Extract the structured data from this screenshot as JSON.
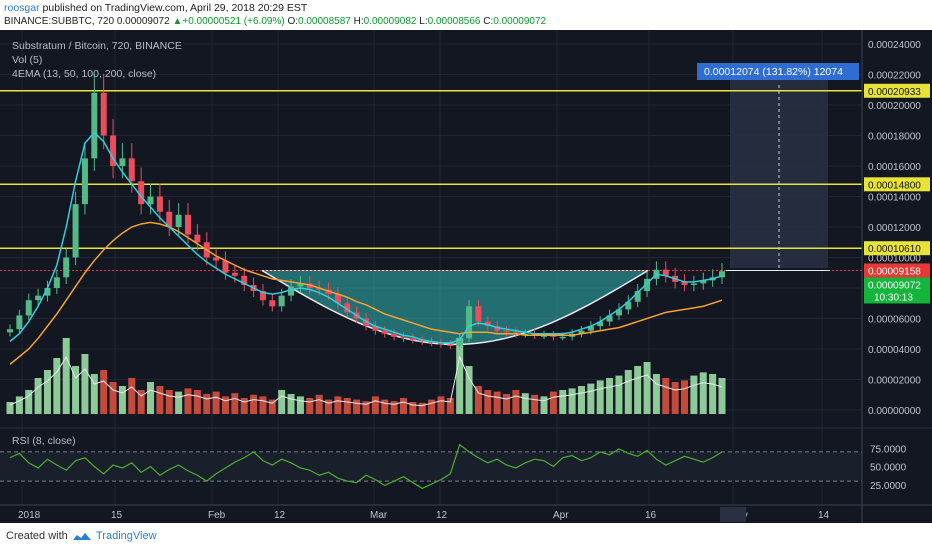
{
  "header": {
    "user": "roosgar",
    "published": "published on TradingView.com, April 29, 2018 20:29 EST",
    "symbol": "BINANCE:SUBBTC, 720",
    "last": "0.00009072",
    "change": "+0.00000521 (+6.09%)",
    "o_label": "O:",
    "o": "0.00008587",
    "h_label": "H:",
    "h": "0.00009082",
    "l_label": "L:",
    "l": "0.00008566",
    "c_label": "C:",
    "c": "0.00009072"
  },
  "legend": {
    "title": "Substratum / Bitcoin, 720, BINANCE",
    "vol": "Vol (5)",
    "ema": "4EMA (13, 50, 100, 200, close)",
    "rsi": "RSI (8, close)"
  },
  "measure_label": "0.00012074 (131.82%) 12074",
  "footer": {
    "created": "Created with",
    "brand": "TradingView"
  },
  "colors": {
    "bg": "#131722",
    "up": "#53b987",
    "down": "#eb4d5c",
    "level": "#e8e338",
    "cup_fill": "#2fb6b0",
    "ema13": "#2fd0e0",
    "ema50": "#f4a234",
    "vol_up": "#8ec998",
    "vol_down": "#c44b3c",
    "rsi": "#4caf2f",
    "price_tag": "#e53935",
    "last_tag": "#14b53a",
    "measure": "#2f6dd1"
  },
  "chart_data": {
    "type": "candlestick",
    "title": "Substratum / Bitcoin, 720, BINANCE",
    "y_ticks": [
      "0.00024000",
      "0.00022000",
      "0.00020000",
      "0.00018000",
      "0.00016000",
      "0.00014000",
      "0.00012000",
      "0.00010000",
      "0.00008000",
      "0.00006000",
      "0.00004000",
      "0.00002000",
      "0.00000000"
    ],
    "x_ticks": [
      "2018",
      "15",
      "Feb",
      "12",
      "Mar",
      "12",
      "Apr",
      "16",
      "May",
      "14"
    ],
    "horizontal_levels": [
      {
        "label": "0.00020933",
        "value": 0.00020933
      },
      {
        "label": "0.00014800",
        "value": 0.000148
      },
      {
        "label": "0.00010610",
        "value": 0.0001061
      }
    ],
    "price_tags": {
      "resistance": "0.00009158",
      "last": "0.00009072",
      "countdown": "10:30:13"
    },
    "close_series": [
      5.3e-05,
      6.2e-05,
      7.2e-05,
      7.5e-05,
      8e-05,
      8.7e-05,
      0.0001,
      0.000135,
      0.000165,
      0.000208,
      0.00018,
      0.00016,
      0.000165,
      0.00015,
      0.000135,
      0.00014,
      0.00013,
      0.00012,
      0.000128,
      0.000115,
      0.00011,
      0.0001,
      9.8e-05,
      9e-05,
      8.8e-05,
      8.2e-05,
      7.8e-05,
      7.2e-05,
      6.8e-05,
      7.5e-05,
      8.1e-05,
      8.3e-05,
      8e-05,
      7.9e-05,
      7.6e-05,
      7e-05,
      6.4e-05,
      6e-05,
      5.5e-05,
      5.2e-05,
      5e-05,
      4.8e-05,
      4.7e-05,
      4.6e-05,
      4.5e-05,
      4.4e-05,
      4.3e-05,
      4.2e-05,
      4.7e-05,
      6.8e-05,
      5.8e-05,
      5.5e-05,
      5.2e-05,
      5.1e-05,
      5e-05,
      5e-05,
      4.9e-05,
      4.9e-05,
      4.8e-05,
      4.8e-05,
      5e-05,
      5.2e-05,
      5.5e-05,
      5.8e-05,
      6.2e-05,
      6.6e-05,
      7.1e-05,
      7.8e-05,
      8.6e-05,
      9.2e-05,
      8.8e-05,
      8.4e-05,
      8.2e-05,
      8.3e-05,
      8.5e-05,
      8.7e-05,
      9.1e-05
    ],
    "ema13": [
      4.5e-05,
      5e-05,
      5.8e-05,
      6.8e-05,
      8e-05,
      9.5e-05,
      0.00012,
      0.00015,
      0.000175,
      0.000182,
      0.000176,
      0.000165,
      0.000156,
      0.000148,
      0.00014,
      0.000133,
      0.000126,
      0.00012,
      0.000114,
      0.000108,
      0.000102,
      9.7e-05,
      9.3e-05,
      8.9e-05,
      8.6e-05,
      8.3e-05,
      8e-05,
      7.7e-05,
      7.6e-05,
      7.7e-05,
      7.9e-05,
      8e-05,
      7.9e-05,
      7.7e-05,
      7.4e-05,
      7e-05,
      6.6e-05,
      6.2e-05,
      5.8e-05,
      5.5e-05,
      5.3e-05,
      5.1e-05,
      4.9e-05,
      4.8e-05,
      4.6e-05,
      4.5e-05,
      4.4e-05,
      4.4e-05,
      4.6e-05,
      5.5e-05,
      5.7e-05,
      5.6e-05,
      5.4e-05,
      5.3e-05,
      5.2e-05,
      5.1e-05,
      5e-05,
      5e-05,
      5e-05,
      5e-05,
      5.1e-05,
      5.3e-05,
      5.5e-05,
      5.8e-05,
      6.2e-05,
      6.6e-05,
      7.1e-05,
      7.7e-05,
      8.3e-05,
      8.9e-05,
      8.8e-05,
      8.6e-05,
      8.4e-05,
      8.4e-05,
      8.5e-05,
      8.6e-05,
      8.8e-05
    ],
    "ema50": [
      3e-05,
      3.5e-05,
      4e-05,
      4.7e-05,
      5.5e-05,
      6.3e-05,
      7.2e-05,
      8.1e-05,
      9e-05,
      9.8e-05,
      0.000105,
      0.000111,
      0.000116,
      0.00012,
      0.000122,
      0.000123,
      0.000122,
      0.00012,
      0.000117,
      0.000113,
      0.000109,
      0.000105,
      0.000101,
      9.8e-05,
      9.5e-05,
      9.2e-05,
      9e-05,
      8.8e-05,
      8.6e-05,
      8.5e-05,
      8.4e-05,
      8.3e-05,
      8.2e-05,
      8e-05,
      7.8e-05,
      7.6e-05,
      7.4e-05,
      7.1e-05,
      6.9e-05,
      6.6e-05,
      6.3e-05,
      6.1e-05,
      5.9e-05,
      5.7e-05,
      5.5e-05,
      5.3e-05,
      5.2e-05,
      5.1e-05,
      5e-05,
      5.1e-05,
      5.1e-05,
      5.1e-05,
      5e-05,
      5e-05,
      5e-05,
      4.9e-05,
      4.9e-05,
      4.9e-05,
      4.9e-05,
      4.9e-05,
      4.9e-05,
      5e-05,
      5.1e-05,
      5.2e-05,
      5.3e-05,
      5.4e-05,
      5.6e-05,
      5.8e-05,
      6e-05,
      6.2e-05,
      6.4e-05,
      6.5e-05,
      6.6e-05,
      6.7e-05,
      6.8e-05,
      7e-05,
      7.2e-05
    ],
    "volume": [
      0.15,
      0.22,
      0.3,
      0.45,
      0.55,
      0.7,
      0.95,
      0.6,
      0.75,
      0.5,
      0.55,
      0.4,
      0.35,
      0.45,
      0.3,
      0.4,
      0.35,
      0.3,
      0.28,
      0.32,
      0.3,
      0.25,
      0.28,
      0.22,
      0.26,
      0.2,
      0.24,
      0.22,
      0.18,
      0.3,
      0.25,
      0.22,
      0.2,
      0.24,
      0.18,
      0.22,
      0.2,
      0.18,
      0.16,
      0.22,
      0.18,
      0.16,
      0.2,
      0.15,
      0.14,
      0.18,
      0.22,
      0.2,
      0.95,
      0.6,
      0.35,
      0.3,
      0.28,
      0.25,
      0.3,
      0.26,
      0.24,
      0.22,
      0.28,
      0.3,
      0.32,
      0.35,
      0.38,
      0.42,
      0.45,
      0.48,
      0.55,
      0.6,
      0.65,
      0.5,
      0.45,
      0.4,
      0.42,
      0.48,
      0.52,
      0.5,
      0.45
    ],
    "rsi_ticks": [
      "75.0000",
      "50.0000",
      "25.0000"
    ],
    "rsi": [
      62,
      68,
      55,
      48,
      60,
      52,
      45,
      58,
      62,
      50,
      40,
      52,
      48,
      55,
      42,
      50,
      38,
      46,
      52,
      44,
      38,
      30,
      40,
      48,
      56,
      62,
      70,
      58,
      52,
      60,
      55,
      48,
      45,
      38,
      42,
      34,
      30,
      28,
      38,
      32,
      24,
      30,
      36,
      28,
      20,
      26,
      32,
      40,
      80,
      70,
      62,
      55,
      60,
      52,
      48,
      55,
      60,
      58,
      50,
      62,
      65,
      58,
      62,
      70,
      66,
      74,
      68,
      64,
      72,
      60,
      52,
      58,
      64,
      60,
      56,
      62,
      70
    ]
  }
}
